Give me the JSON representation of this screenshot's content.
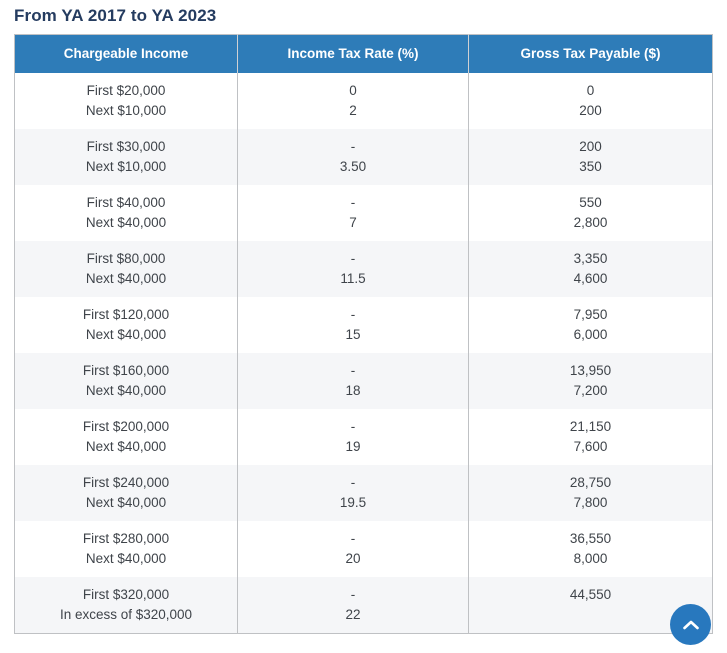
{
  "page": {
    "title": "From YA 2017 to YA 2023"
  },
  "colors": {
    "header_bg": "#2e7cb8",
    "header_text": "#ffffff",
    "title_text": "#253c60",
    "body_text": "#3f444a",
    "row_alt_bg": "#f5f6f8",
    "border": "#bfc1c4",
    "back_to_top_bg": "#2878be",
    "back_to_top_glyph": "#ffffff"
  },
  "table": {
    "columns": [
      "Chargeable Income",
      "Income Tax Rate (%)",
      "Gross Tax Payable ($)"
    ],
    "rows": [
      {
        "income": [
          "First $20,000",
          "Next $10,000"
        ],
        "rate": [
          "0",
          "2"
        ],
        "payable": [
          "0",
          "200"
        ]
      },
      {
        "income": [
          "First $30,000",
          "Next $10,000"
        ],
        "rate": [
          "-",
          "3.50"
        ],
        "payable": [
          "200",
          "350"
        ]
      },
      {
        "income": [
          "First $40,000",
          "Next $40,000"
        ],
        "rate": [
          "-",
          "7"
        ],
        "payable": [
          "550",
          "2,800"
        ]
      },
      {
        "income": [
          "First $80,000",
          "Next $40,000"
        ],
        "rate": [
          "-",
          "11.5"
        ],
        "payable": [
          "3,350",
          "4,600"
        ]
      },
      {
        "income": [
          "First $120,000",
          "Next $40,000"
        ],
        "rate": [
          "-",
          "15"
        ],
        "payable": [
          "7,950",
          "6,000"
        ]
      },
      {
        "income": [
          "First $160,000",
          "Next $40,000"
        ],
        "rate": [
          "-",
          "18"
        ],
        "payable": [
          "13,950",
          "7,200"
        ]
      },
      {
        "income": [
          "First $200,000",
          "Next $40,000"
        ],
        "rate": [
          "-",
          "19"
        ],
        "payable": [
          "21,150",
          "7,600"
        ]
      },
      {
        "income": [
          "First $240,000",
          "Next $40,000"
        ],
        "rate": [
          "-",
          "19.5"
        ],
        "payable": [
          "28,750",
          "7,800"
        ]
      },
      {
        "income": [
          "First $280,000",
          "Next $40,000"
        ],
        "rate": [
          "-",
          "20"
        ],
        "payable": [
          "36,550",
          "8,000"
        ]
      },
      {
        "income": [
          "First $320,000",
          "In excess of $320,000"
        ],
        "rate": [
          "-",
          "22"
        ],
        "payable": [
          "44,550"
        ]
      }
    ]
  },
  "back_to_top": {
    "icon": "chevron-up-icon"
  }
}
